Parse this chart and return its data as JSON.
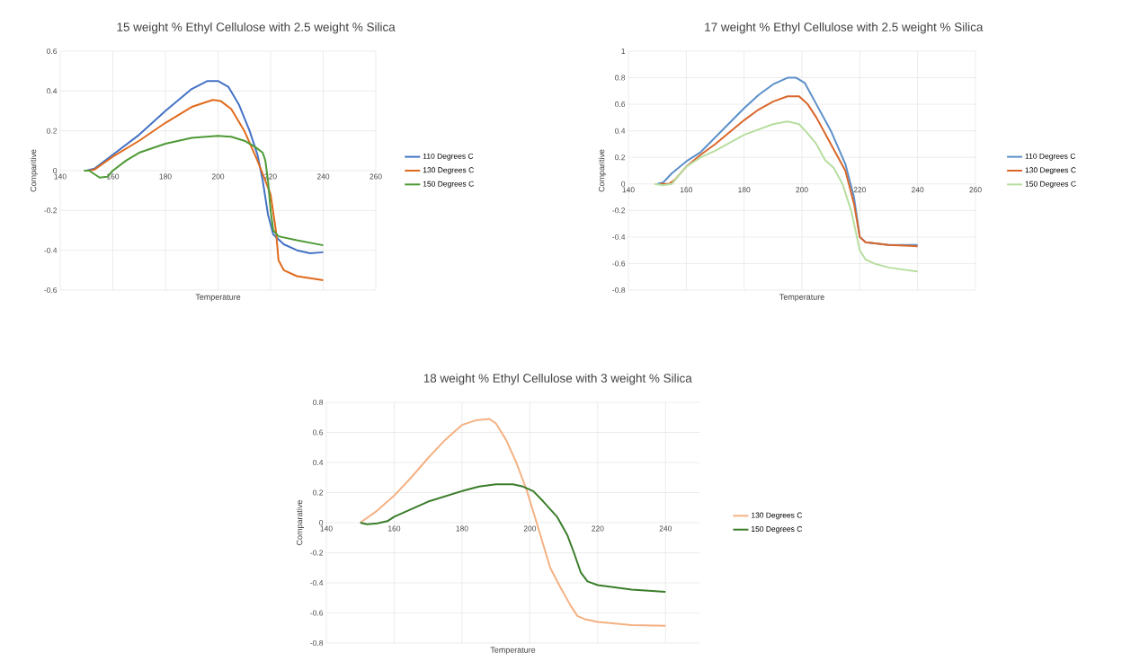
{
  "chart_data": [
    {
      "type": "line",
      "title": "15 weight % Ethyl Cellulose with 2.5 weight % Silica",
      "xlabel": "Temperature",
      "ylabel": "Comparitive",
      "xlim": [
        140,
        260
      ],
      "ylim": [
        -0.6,
        0.6
      ],
      "xticks": [
        140,
        160,
        180,
        200,
        220,
        240,
        260
      ],
      "yticks": [
        -0.6,
        -0.4,
        -0.2,
        0,
        0.2,
        0.4,
        0.6
      ],
      "grid": true,
      "legend": "right",
      "series": [
        {
          "name": "110 Degrees C",
          "color": "#4472c4",
          "x": [
            150,
            153,
            160,
            170,
            180,
            190,
            196,
            200,
            204,
            208,
            212,
            215,
            217,
            219,
            221,
            225,
            230,
            235,
            240
          ],
          "values": [
            0,
            0.01,
            0.08,
            0.18,
            0.3,
            0.41,
            0.45,
            0.45,
            0.42,
            0.33,
            0.2,
            0.08,
            -0.05,
            -0.22,
            -0.32,
            -0.37,
            -0.4,
            -0.415,
            -0.41
          ]
        },
        {
          "name": "130 Degrees C",
          "color": "#e06a1c",
          "x": [
            151,
            153,
            160,
            170,
            180,
            190,
            198,
            201,
            205,
            210,
            215,
            218,
            220,
            222,
            223,
            225,
            230,
            240
          ],
          "values": [
            0,
            0.005,
            0.07,
            0.15,
            0.24,
            0.32,
            0.355,
            0.35,
            0.31,
            0.2,
            0.05,
            -0.05,
            -0.12,
            -0.3,
            -0.45,
            -0.5,
            -0.53,
            -0.55
          ]
        },
        {
          "name": "150 Degrees C",
          "color": "#4e9a36",
          "x": [
            149,
            151,
            155,
            158,
            160,
            165,
            170,
            180,
            190,
            200,
            205,
            210,
            214,
            217,
            218,
            219,
            220,
            221,
            223,
            230,
            240
          ],
          "values": [
            0,
            0,
            -0.035,
            -0.03,
            0,
            0.05,
            0.09,
            0.135,
            0.165,
            0.175,
            0.17,
            0.15,
            0.12,
            0.09,
            0.05,
            -0.05,
            -0.2,
            -0.3,
            -0.33,
            -0.35,
            -0.375
          ]
        }
      ]
    },
    {
      "type": "line",
      "title": "17 weight % Ethyl Cellulose with 2.5 weight % Silica",
      "xlabel": "Temperature",
      "ylabel": "Comparitive",
      "xlim": [
        140,
        260
      ],
      "ylim": [
        -0.8,
        1
      ],
      "xticks": [
        140,
        160,
        180,
        200,
        220,
        240,
        260
      ],
      "yticks": [
        -0.8,
        -0.6,
        -0.4,
        -0.2,
        0,
        0.2,
        0.4,
        0.6,
        0.8,
        1
      ],
      "grid": true,
      "legend": "right",
      "series": [
        {
          "name": "110 Degrees C",
          "color": "#5b8fc9",
          "x": [
            150,
            152,
            155,
            160,
            165,
            170,
            180,
            185,
            190,
            195,
            198,
            201,
            205,
            210,
            215,
            218,
            220,
            222,
            230,
            240
          ],
          "values": [
            0,
            0.01,
            0.08,
            0.17,
            0.24,
            0.35,
            0.57,
            0.67,
            0.75,
            0.8,
            0.8,
            0.76,
            0.6,
            0.4,
            0.15,
            -0.1,
            -0.4,
            -0.44,
            -0.46,
            -0.46
          ]
        },
        {
          "name": "130 Degrees C",
          "color": "#d9662a",
          "x": [
            151,
            154,
            156,
            160,
            165,
            170,
            180,
            185,
            190,
            195,
            199,
            202,
            205,
            210,
            215,
            218,
            220,
            222,
            230,
            240
          ],
          "values": [
            0,
            0,
            0.03,
            0.13,
            0.22,
            0.3,
            0.48,
            0.56,
            0.62,
            0.66,
            0.66,
            0.6,
            0.5,
            0.3,
            0.1,
            -0.15,
            -0.4,
            -0.44,
            -0.46,
            -0.47
          ]
        },
        {
          "name": "150 Degrees C",
          "color": "#b7dea0",
          "x": [
            149,
            152,
            155,
            158,
            160,
            165,
            170,
            180,
            190,
            195,
            199,
            202,
            205,
            208,
            211,
            214,
            217,
            220,
            222,
            225,
            230,
            240
          ],
          "values": [
            0,
            -0.01,
            0,
            0.08,
            0.13,
            0.2,
            0.25,
            0.37,
            0.45,
            0.47,
            0.45,
            0.38,
            0.3,
            0.18,
            0.12,
            0,
            -0.2,
            -0.5,
            -0.57,
            -0.6,
            -0.63,
            -0.66
          ]
        }
      ]
    },
    {
      "type": "line",
      "title": "18 weight % Ethyl Cellulose with 3 weight % Silica",
      "xlabel": "Temperature",
      "ylabel": "Comparative",
      "xlim": [
        140,
        250
      ],
      "ylim": [
        -0.8,
        0.8
      ],
      "xticks": [
        140,
        160,
        180,
        200,
        220,
        240
      ],
      "yticks": [
        -0.8,
        -0.6,
        -0.4,
        -0.2,
        0,
        0.2,
        0.4,
        0.6,
        0.8
      ],
      "grid": true,
      "legend": "right",
      "series": [
        {
          "name": "130 Degrees C",
          "color": "#f4b183",
          "x": [
            150,
            155,
            160,
            165,
            170,
            175,
            180,
            184,
            188,
            190,
            193,
            196,
            199,
            202,
            204,
            206,
            209,
            212,
            214,
            216,
            220,
            230,
            240
          ],
          "values": [
            0,
            0.08,
            0.18,
            0.3,
            0.43,
            0.55,
            0.65,
            0.68,
            0.69,
            0.66,
            0.55,
            0.4,
            0.22,
            0,
            -0.15,
            -0.3,
            -0.43,
            -0.55,
            -0.62,
            -0.64,
            -0.66,
            -0.68,
            -0.685
          ]
        },
        {
          "name": "150 Degrees C",
          "color": "#3a7d2a",
          "x": [
            150,
            152,
            155,
            158,
            160,
            165,
            170,
            180,
            185,
            190,
            195,
            198,
            201,
            204,
            208,
            211,
            213,
            215,
            217,
            220,
            230,
            240
          ],
          "values": [
            0,
            -0.01,
            -0.005,
            0.01,
            0.04,
            0.09,
            0.14,
            0.21,
            0.24,
            0.255,
            0.255,
            0.24,
            0.21,
            0.14,
            0.04,
            -0.08,
            -0.2,
            -0.33,
            -0.39,
            -0.415,
            -0.445,
            -0.46
          ]
        }
      ]
    }
  ]
}
